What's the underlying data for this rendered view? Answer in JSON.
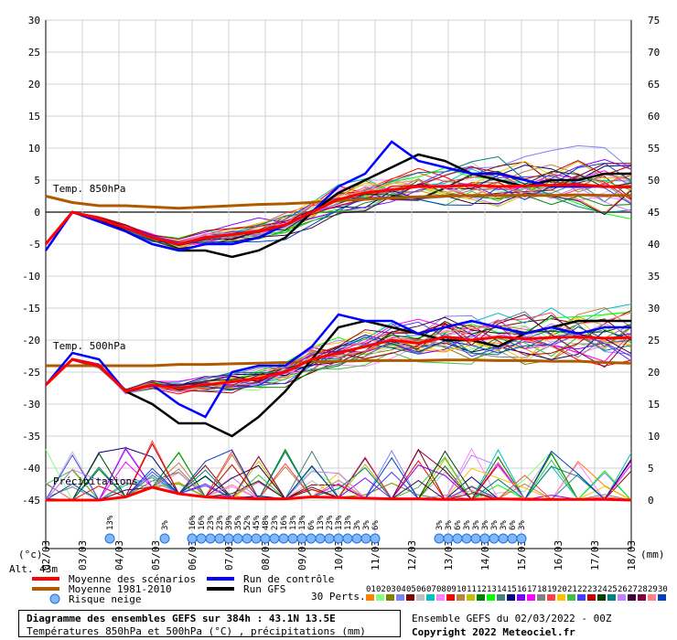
{
  "chart_data": {
    "type": "line",
    "title": "Diagramme des ensembles GEFS sur 384h : 43.1N 13.5E",
    "subtitle": "Températures 850hPa et 500hPa (°C) , précipitations (mm)",
    "run_info": "Ensemble GEFS du 02/03/2022 - 00Z",
    "copyright": "Copyright 2022 Meteociel.fr",
    "altitude": "Alt. 43m",
    "left_unit": "(°c)",
    "right_unit": "(mm)",
    "ylim_left": [
      -45,
      30
    ],
    "ylim_right": [
      0,
      75
    ],
    "left_ticks": [
      "30",
      "25",
      "20",
      "15",
      "10",
      "5",
      "0",
      "-5",
      "-10",
      "-15",
      "-20",
      "-25",
      "-30",
      "-35",
      "-40",
      "-45"
    ],
    "right_ticks": [
      "75",
      "70",
      "65",
      "60",
      "55",
      "50",
      "45",
      "40",
      "35",
      "30",
      "25",
      "20",
      "15",
      "10",
      "5",
      "0"
    ],
    "x_ticks": [
      "02/03",
      "03/03",
      "04/03",
      "05/03",
      "06/03",
      "07/03",
      "08/03",
      "09/03",
      "10/03",
      "11/03",
      "12/03",
      "13/03",
      "14/03",
      "15/03",
      "16/03",
      "17/03",
      "18/03"
    ],
    "panel_labels": [
      "Temp. 850hPa",
      "Temp. 500hPa",
      "Précipitations"
    ],
    "series": [
      {
        "name": "Moyenne des scénarios",
        "color": "#ff0000",
        "t850": [
          -5,
          0,
          -1,
          -2.5,
          -4,
          -5,
          -4,
          -3.5,
          -3,
          -2,
          0,
          2,
          3,
          3.5,
          4,
          4,
          4.2,
          4,
          4.1,
          4.2,
          4.3,
          4,
          3.9
        ],
        "t500": [
          -27,
          -23,
          -24,
          -28,
          -27,
          -27.5,
          -27,
          -26.5,
          -26,
          -25,
          -23,
          -22,
          -21,
          -20,
          -20.5,
          -19.5,
          -20,
          -19.5,
          -19.8,
          -19.6,
          -19.5,
          -19.7,
          -19.6
        ],
        "precip": [
          0,
          0,
          0,
          0.5,
          2,
          1,
          0.5,
          0.3,
          0.2,
          0.2,
          0.5,
          0.4,
          0.3,
          0.2,
          0.2,
          0.1,
          0.1,
          0.2,
          0.1,
          0.1,
          0.1,
          0.1,
          0
        ]
      },
      {
        "name": "Moyenne 1981-2010",
        "color": "#b05a00",
        "t850": [
          2.5,
          1.5,
          1,
          1,
          0.8,
          0.6,
          0.8,
          1,
          1.2,
          1.3,
          1.5,
          1.8,
          2,
          2.2,
          2.4,
          2.5,
          2.6,
          2.6,
          2.6,
          2.6,
          2.7,
          2.6,
          2.6
        ],
        "t500": [
          -24,
          -24,
          -24,
          -24,
          -24,
          -23.8,
          -23.8,
          -23.7,
          -23.6,
          -23.5,
          -23.4,
          -23.3,
          -23.2,
          -23.2,
          -23.2,
          -23.1,
          -23.1,
          -23.2,
          -23.2,
          -23.3,
          -23.3,
          -23.5,
          -23.6
        ]
      },
      {
        "name": "Run de contrôle",
        "color": "#0000ff",
        "t850": [
          -6,
          0,
          -1.5,
          -3,
          -5,
          -6,
          -5,
          -5,
          -4,
          -2,
          0,
          4,
          6,
          11,
          8,
          7,
          6,
          6,
          5,
          4,
          4,
          4,
          4
        ],
        "t500": [
          -27,
          -22,
          -23,
          -28,
          -27,
          -30,
          -32,
          -25,
          -24,
          -24,
          -21,
          -16,
          -17,
          -17,
          -19,
          -18,
          -17,
          -18,
          -19,
          -18,
          -19,
          -18,
          -18
        ]
      },
      {
        "name": "Run GFS",
        "color": "#000000",
        "t850": [
          -5,
          0,
          -1,
          -3,
          -5,
          -6,
          -6,
          -7,
          -6,
          -4,
          0,
          3,
          5,
          7,
          9,
          8,
          6,
          5,
          4,
          5,
          5,
          6,
          6
        ],
        "t500": [
          -27,
          -23,
          -24,
          -28,
          -30,
          -33,
          -33,
          -35,
          -32,
          -28,
          -23,
          -18,
          -17,
          -18,
          -19,
          -20,
          -20,
          -21,
          -19,
          -18,
          -17,
          -17,
          -17
        ]
      }
    ],
    "perturbation_note": "30 Perts.",
    "perturbation_labels": [
      "01",
      "02",
      "03",
      "04",
      "05",
      "06",
      "07",
      "08",
      "09",
      "10",
      "11",
      "12",
      "13",
      "14",
      "15",
      "16",
      "17",
      "18",
      "19",
      "20",
      "21",
      "22",
      "23",
      "24",
      "25",
      "26",
      "27",
      "28",
      "29",
      "30"
    ],
    "perturbation_colors": [
      "#ff8000",
      "#80ff80",
      "#808000",
      "#8080ff",
      "#800000",
      "#c0c0c0",
      "#00c0c0",
      "#ff80ff",
      "#ff0000",
      "#c08040",
      "#c0c000",
      "#008000",
      "#00ff00",
      "#408080",
      "#000080",
      "#8000ff",
      "#ff00ff",
      "#808080",
      "#ff4040",
      "#ffc000",
      "#40c040",
      "#4040ff",
      "#c00000",
      "#004000",
      "#008080",
      "#c080ff",
      "#400040",
      "#800040",
      "#ff8080",
      "#0040c0"
    ],
    "snow_risk": [
      {
        "slot": 7,
        "label": "13%"
      },
      {
        "slot": 13,
        "label": "3%"
      },
      {
        "slot": 16,
        "label": "16%"
      },
      {
        "slot": 17,
        "label": "16%"
      },
      {
        "slot": 18,
        "label": "23%"
      },
      {
        "slot": 19,
        "label": "23%"
      },
      {
        "slot": 20,
        "label": "39%"
      },
      {
        "slot": 21,
        "label": "35%"
      },
      {
        "slot": 22,
        "label": "52%"
      },
      {
        "slot": 23,
        "label": "45%"
      },
      {
        "slot": 24,
        "label": "48%"
      },
      {
        "slot": 25,
        "label": "23%"
      },
      {
        "slot": 26,
        "label": "16%"
      },
      {
        "slot": 27,
        "label": "13%"
      },
      {
        "slot": 28,
        "label": "13%"
      },
      {
        "slot": 29,
        "label": "6%"
      },
      {
        "slot": 30,
        "label": "13%"
      },
      {
        "slot": 31,
        "label": "23%"
      },
      {
        "slot": 32,
        "label": "13%"
      },
      {
        "slot": 33,
        "label": "13%"
      },
      {
        "slot": 34,
        "label": "3%"
      },
      {
        "slot": 35,
        "label": "3%"
      },
      {
        "slot": 36,
        "label": "6%"
      },
      {
        "slot": 43,
        "label": "3%"
      },
      {
        "slot": 44,
        "label": "3%"
      },
      {
        "slot": 45,
        "label": "6%"
      },
      {
        "slot": 46,
        "label": "3%"
      },
      {
        "slot": 47,
        "label": "3%"
      },
      {
        "slot": 48,
        "label": "3%"
      },
      {
        "slot": 49,
        "label": "3%"
      },
      {
        "slot": 50,
        "label": "3%"
      },
      {
        "slot": 51,
        "label": "6%"
      },
      {
        "slot": 52,
        "label": "3%"
      },
      {
        "slot": 70,
        "label": "3%"
      },
      {
        "slot": 71,
        "label": "3%"
      },
      {
        "slot": 72,
        "label": "3%"
      },
      {
        "slot": 77,
        "label": "3%"
      },
      {
        "slot": 78,
        "label": "3%"
      },
      {
        "slot": 79,
        "label": "3%"
      },
      {
        "slot": 80,
        "label": "3%"
      },
      {
        "slot": 81,
        "label": "3%"
      }
    ],
    "legend": [
      {
        "label": "Moyenne des scénarios",
        "color": "#ff0000"
      },
      {
        "label": "Moyenne 1981-2010",
        "color": "#b05a00"
      },
      {
        "label": "Risque neige",
        "color": "#7fb8ff"
      },
      {
        "label": "Run de contrôle",
        "color": "#0000ff"
      },
      {
        "label": "Run GFS",
        "color": "#000000"
      }
    ]
  }
}
